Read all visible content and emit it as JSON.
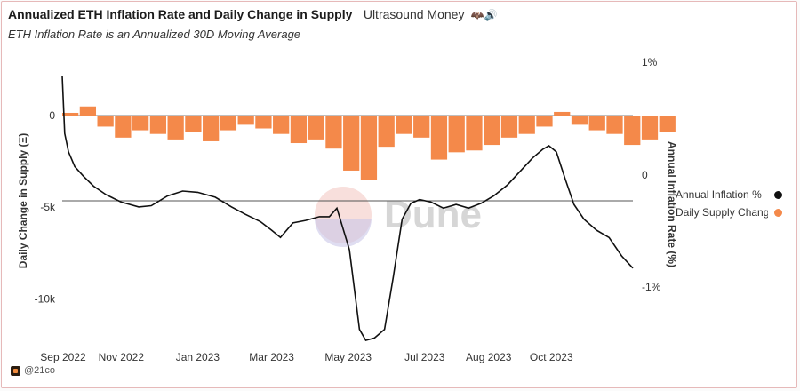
{
  "header": {
    "title": "Annualized ETH Inflation Rate and Daily Change in Supply",
    "source": "Ultrasound Money",
    "emoji": "🦇🔊",
    "subtitle": "ETH Inflation Rate is an Annualized 30D Moving Average"
  },
  "footer": {
    "handle": "@21co"
  },
  "watermark": "Dune",
  "colors": {
    "supply": "#f4894a",
    "inflation": "#111111",
    "zero_line": "#555555"
  },
  "legend": [
    {
      "label": "Annual Inflation %",
      "color": "#111111"
    },
    {
      "label": "Daily Supply Change",
      "color": "#f4894a"
    }
  ],
  "chart_data": {
    "type": "bar+line",
    "xlabel": "",
    "ylabel_left": "Daily Change in Supply (Ξ)",
    "ylabel_right": "Annual Inflation Rate (%)",
    "x_ticks": [
      "Sep 2022",
      "Nov 2022",
      "Jan 2023",
      "Mar 2023",
      "May 2023",
      "Jul 2023",
      "Aug 2023",
      "Oct 2023"
    ],
    "y_left_ticks": [
      "0",
      "-5k",
      "-10k"
    ],
    "y_right_ticks": [
      "1%",
      "0",
      "-1%"
    ],
    "y_left_range": [
      -12600,
      3300
    ],
    "y_right_range": [
      -1.19,
      1.19
    ],
    "date_range": [
      "2022-09-15",
      "2023-12-14"
    ],
    "series": [
      {
        "name": "Daily Supply Change",
        "kind": "bar",
        "x_start": "2022-09-15",
        "interval": "14 days",
        "values": [
          150,
          500,
          -600,
          -1200,
          -800,
          -1000,
          -1300,
          -900,
          -1400,
          -800,
          -500,
          -700,
          -1000,
          -1500,
          -1300,
          -1800,
          -3000,
          -3500,
          -1700,
          -1000,
          -1200,
          -2400,
          -2000,
          -1900,
          -1600,
          -1200,
          -1000,
          -600,
          200,
          -500,
          -800,
          -1000,
          -1600,
          -1300,
          -900
        ]
      },
      {
        "name": "Annual Inflation %",
        "kind": "line",
        "points": [
          [
            "2022-09-15",
            1.02
          ],
          [
            "2022-09-17",
            0.55
          ],
          [
            "2022-09-20",
            0.4
          ],
          [
            "2022-09-25",
            0.28
          ],
          [
            "2022-10-02",
            0.2
          ],
          [
            "2022-10-10",
            0.12
          ],
          [
            "2022-10-20",
            0.05
          ],
          [
            "2022-11-01",
            -0.01
          ],
          [
            "2022-11-15",
            -0.05
          ],
          [
            "2022-11-25",
            -0.04
          ],
          [
            "2022-12-08",
            0.04
          ],
          [
            "2022-12-20",
            0.08
          ],
          [
            "2023-01-01",
            0.07
          ],
          [
            "2023-01-15",
            0.03
          ],
          [
            "2023-01-28",
            -0.05
          ],
          [
            "2023-02-08",
            -0.11
          ],
          [
            "2023-02-20",
            -0.17
          ],
          [
            "2023-03-01",
            -0.24
          ],
          [
            "2023-03-08",
            -0.3
          ],
          [
            "2023-03-18",
            -0.18
          ],
          [
            "2023-03-28",
            -0.16
          ],
          [
            "2023-04-08",
            -0.13
          ],
          [
            "2023-04-16",
            -0.13
          ],
          [
            "2023-04-22",
            -0.06
          ],
          [
            "2023-05-02",
            -0.4
          ],
          [
            "2023-05-10",
            -1.05
          ],
          [
            "2023-05-15",
            -1.14
          ],
          [
            "2023-05-22",
            -1.12
          ],
          [
            "2023-05-30",
            -1.05
          ],
          [
            "2023-06-06",
            -0.62
          ],
          [
            "2023-06-13",
            -0.15
          ],
          [
            "2023-06-20",
            -0.02
          ],
          [
            "2023-06-27",
            0.01
          ],
          [
            "2023-07-06",
            -0.01
          ],
          [
            "2023-07-16",
            -0.06
          ],
          [
            "2023-07-26",
            -0.03
          ],
          [
            "2023-08-05",
            -0.06
          ],
          [
            "2023-08-15",
            -0.02
          ],
          [
            "2023-08-25",
            0.04
          ],
          [
            "2023-09-05",
            0.13
          ],
          [
            "2023-09-15",
            0.24
          ],
          [
            "2023-09-25",
            0.35
          ],
          [
            "2023-10-03",
            0.42
          ],
          [
            "2023-10-08",
            0.45
          ],
          [
            "2023-10-14",
            0.4
          ],
          [
            "2023-10-21",
            0.18
          ],
          [
            "2023-10-28",
            -0.03
          ],
          [
            "2023-11-05",
            -0.15
          ],
          [
            "2023-11-15",
            -0.24
          ],
          [
            "2023-11-25",
            -0.3
          ],
          [
            "2023-12-05",
            -0.45
          ],
          [
            "2023-12-14",
            -0.55
          ]
        ]
      }
    ],
    "grid": false,
    "legend_position": "right"
  }
}
